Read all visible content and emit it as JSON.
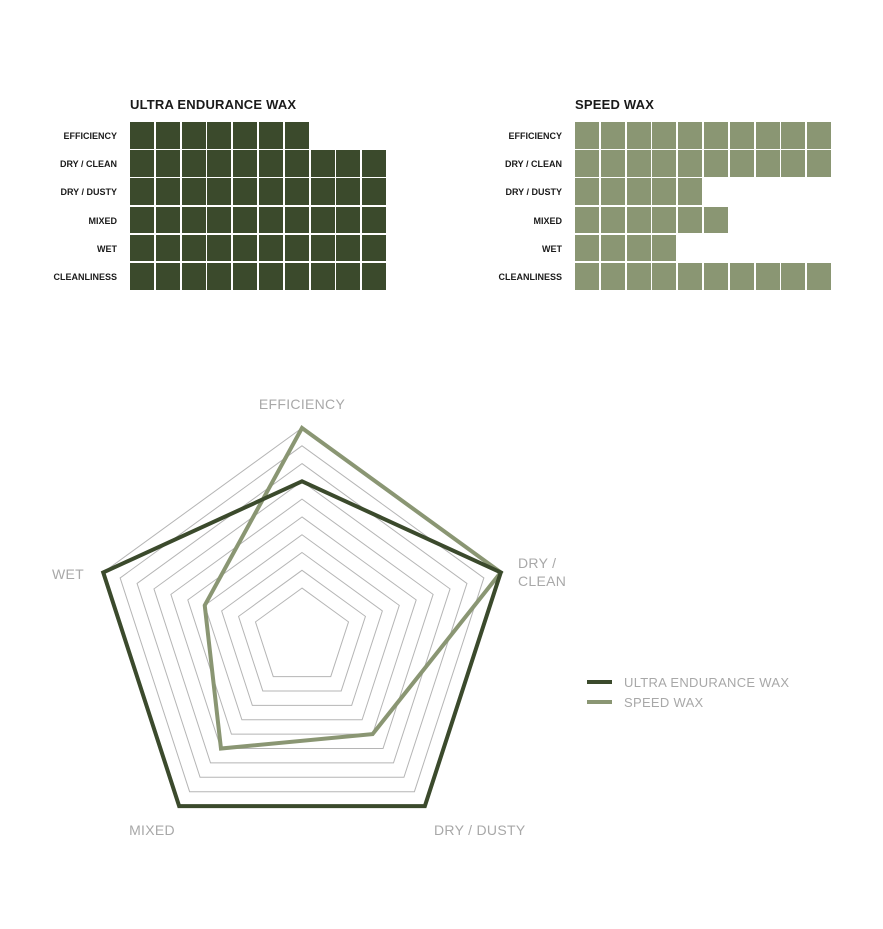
{
  "chart_data": [
    {
      "type": "waffle-bar",
      "title": "ULTRA ENDURANCE WAX",
      "categories": [
        "EFFICIENCY",
        "DRY / CLEAN",
        "DRY / DUSTY",
        "MIXED",
        "WET",
        "CLEANLINESS"
      ],
      "values": [
        7,
        10,
        10,
        10,
        10,
        10
      ],
      "max": 10,
      "color": "#3b4a2c"
    },
    {
      "type": "waffle-bar",
      "title": "SPEED WAX",
      "categories": [
        "EFFICIENCY",
        "DRY / CLEAN",
        "DRY / DUSTY",
        "MIXED",
        "WET",
        "CLEANLINESS"
      ],
      "values": [
        10,
        10,
        5,
        6,
        4,
        10
      ],
      "max": 10,
      "color": "#8a9673"
    },
    {
      "type": "radar",
      "axes": [
        "EFFICIENCY",
        "DRY / CLEAN",
        "DRY / DUSTY",
        "MIXED",
        "WET"
      ],
      "axis_labels": [
        [
          "EFFICIENCY"
        ],
        [
          "DRY /",
          "CLEAN"
        ],
        [
          "DRY / DUSTY"
        ],
        [
          "MIXED"
        ],
        [
          "WET"
        ]
      ],
      "range": [
        1,
        10
      ],
      "grid_rings": 10,
      "series": [
        {
          "name": "ULTRA ENDURANCE WAX",
          "values": [
            7,
            10,
            10,
            10,
            10
          ],
          "color": "#3b4a2c"
        },
        {
          "name": "SPEED WAX",
          "values": [
            10,
            10,
            5,
            6,
            4
          ],
          "color": "#8a9673"
        }
      ],
      "legend": "right"
    }
  ]
}
